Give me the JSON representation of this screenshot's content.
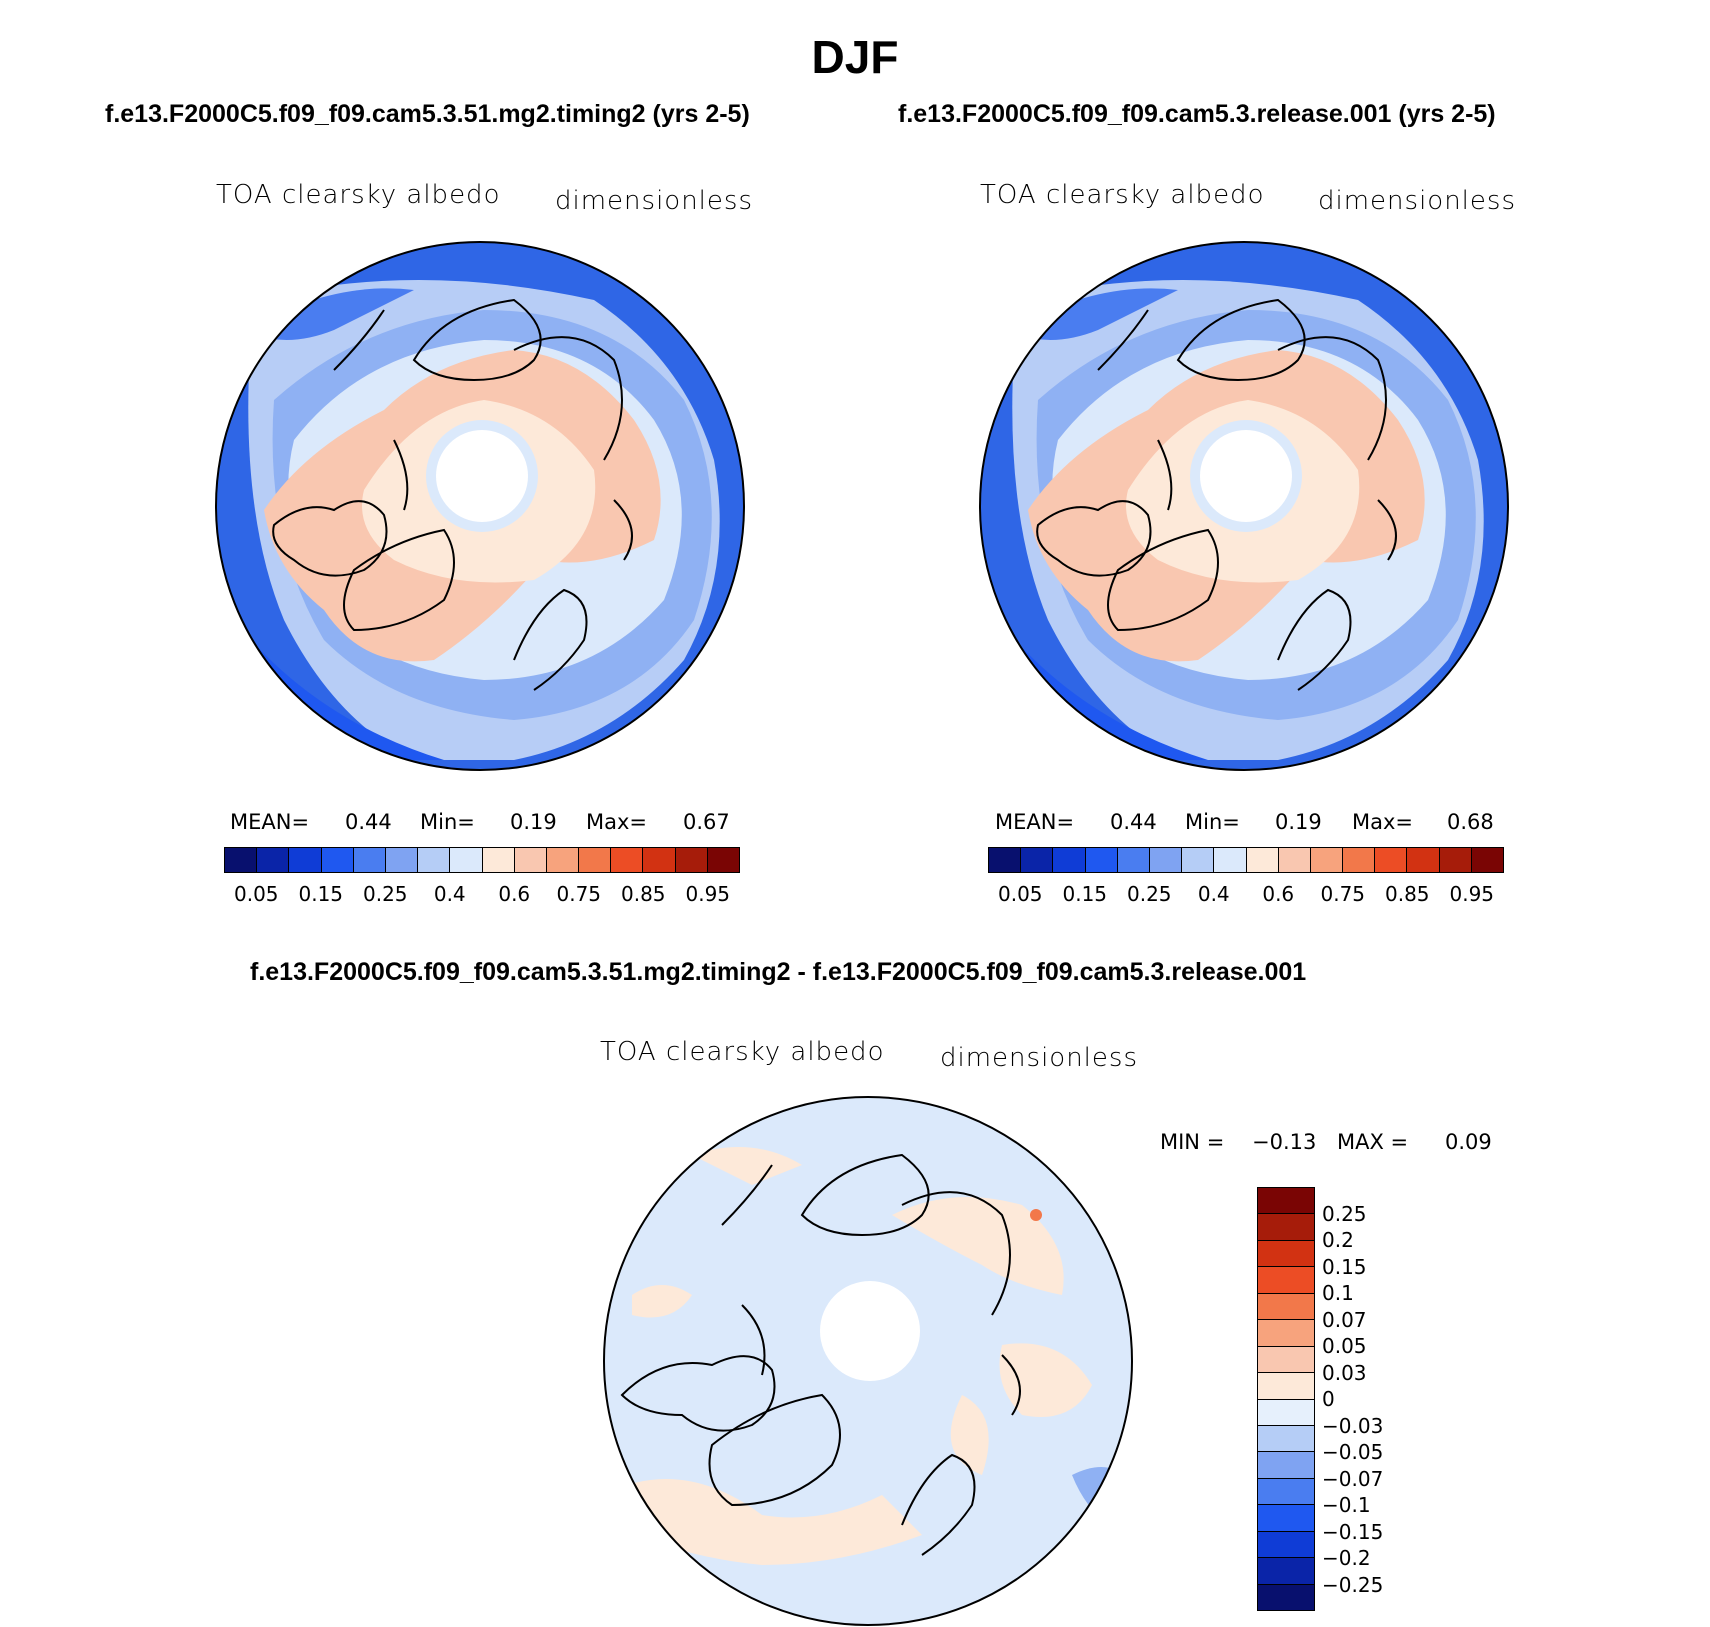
{
  "title": "DJF",
  "panels": [
    {
      "case_title": "f.e13.F2000C5.f09_f09.cam5.3.51.mg2.timing2 (yrs 2-5)",
      "variable": "TOA clearsky albedo",
      "units": "dimensionless",
      "mean_label": "MEAN=",
      "mean": "0.44",
      "min_label": "Min=",
      "min": "0.19",
      "max_label": "Max=",
      "max": "0.67"
    },
    {
      "case_title": "f.e13.F2000C5.f09_f09.cam5.3.release.001 (yrs 2-5)",
      "variable": "TOA clearsky albedo",
      "units": "dimensionless",
      "mean_label": "MEAN=",
      "mean": "0.44",
      "min_label": "Min=",
      "min": "0.19",
      "max_label": "Max=",
      "max": "0.68"
    }
  ],
  "colorbar": {
    "colors": [
      "#08106e",
      "#0a24a8",
      "#0f3cd6",
      "#1f58f0",
      "#4a7df0",
      "#7fa3f2",
      "#b5cdf6",
      "#dbe9fb",
      "#fde9d9",
      "#f9c7b0",
      "#f7a37d",
      "#f2784a",
      "#ec4d25",
      "#d23212",
      "#a61c0a",
      "#7a0504"
    ],
    "ticks": [
      "0.05",
      "0.15",
      "0.25",
      "0.4",
      "0.6",
      "0.75",
      "0.85",
      "0.95"
    ]
  },
  "diff": {
    "title": "f.e13.F2000C5.f09_f09.cam5.3.51.mg2.timing2 - f.e13.F2000C5.f09_f09.cam5.3.release.001",
    "variable": "TOA clearsky albedo",
    "units": "dimensionless",
    "min_label": "MIN =",
    "min": "−0.13",
    "max_label": "MAX =",
    "max": "0.09",
    "colors": [
      "#7a0504",
      "#a61c0a",
      "#d23212",
      "#ec4d25",
      "#f2784a",
      "#f7a37d",
      "#f9c7b0",
      "#fde9d9",
      "#e6f0fc",
      "#b5cdf6",
      "#7fa3f2",
      "#4a7df0",
      "#1f58f0",
      "#0f3cd6",
      "#0a24a8",
      "#08106e"
    ],
    "ticks": [
      "0.25",
      "0.2",
      "0.15",
      "0.1",
      "0.07",
      "0.05",
      "0.03",
      "0",
      "−0.03",
      "−0.05",
      "−0.07",
      "−0.1",
      "−0.15",
      "−0.2",
      "−0.25"
    ]
  }
}
